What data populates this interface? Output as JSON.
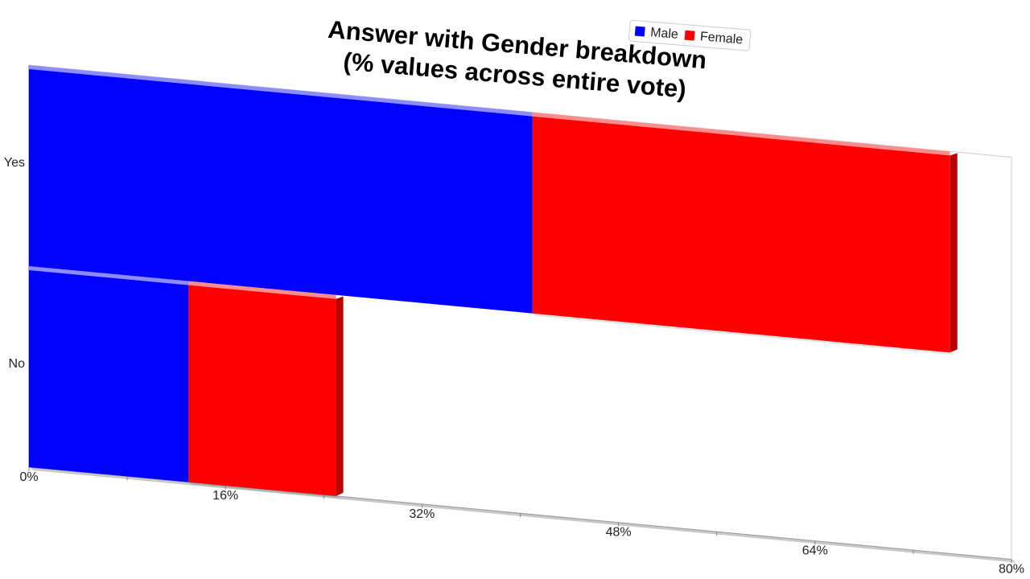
{
  "chart_data": {
    "type": "bar",
    "orientation": "horizontal",
    "stacked": true,
    "title_lines": [
      "Answer with Gender breakdown",
      "(% values across entire vote)"
    ],
    "categories": [
      "Yes",
      "No"
    ],
    "series": [
      {
        "name": "Male",
        "values": [
          41,
          13
        ],
        "color": "#0000ff"
      },
      {
        "name": "Female",
        "values": [
          34,
          12
        ],
        "color": "#ff0000"
      }
    ],
    "x_ticks": [
      "0%",
      "16%",
      "32%",
      "48%",
      "64%",
      "80%"
    ],
    "xlim": [
      0,
      80
    ],
    "legend_position": "top-right",
    "grid": false
  }
}
